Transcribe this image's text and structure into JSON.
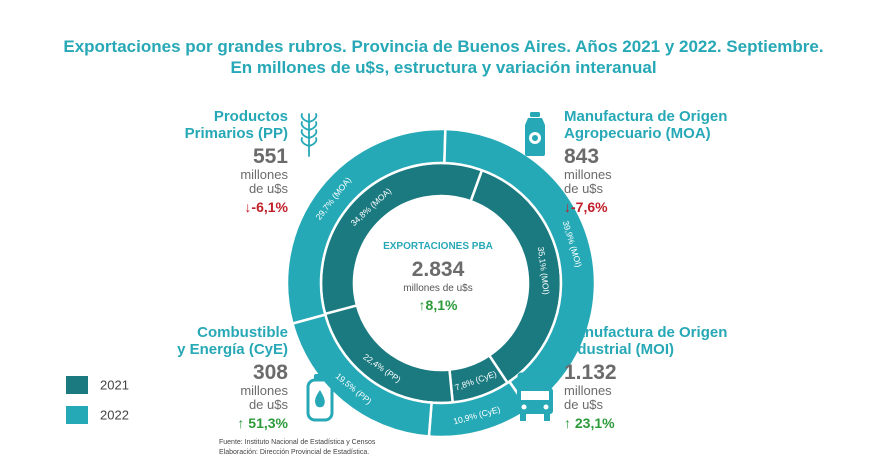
{
  "title_line1": "Exportaciones por grandes rubros. Provincia de Buenos Aires. Años 2021 y 2022. Septiembre.",
  "title_line2": "En millones de u$s, estructura y variación interanual",
  "colors": {
    "y2021": "#1a7a80",
    "y2022": "#26a9b6",
    "accent": "#27a8b6",
    "neg": "#c0202a",
    "pos": "#2d9a3a"
  },
  "blocks": {
    "pp": {
      "line1": "Productos",
      "line2": "Primarios (PP)",
      "value": "551",
      "unit1": "millones",
      "unit2": "de u$s",
      "change": "-6,1%",
      "icon": "wheat-icon"
    },
    "moa": {
      "line1": "Manufactura de Origen",
      "line2": "Agropecuario (MOA)",
      "value": "843",
      "unit1": "millones",
      "unit2": "de u$s",
      "change": "-7,6%",
      "icon": "milk-can-icon"
    },
    "cye": {
      "line1": "Combustible",
      "line2": "y Energía (CyE)",
      "value": "308",
      "unit1": "millones",
      "unit2": "de u$s",
      "change": "51,3%",
      "icon": "gas-cylinder-icon"
    },
    "moi": {
      "line1": "Manufactura de Origen",
      "line2": "Industrial (MOI)",
      "value": "1.132",
      "unit1": "millones",
      "unit2": "de u$s",
      "change": "23,1%",
      "icon": "truck-icon"
    }
  },
  "center": {
    "label": "EXPORTACIONES PBA",
    "value": "2.834",
    "unit": "millones de u$s",
    "change": "8,1%"
  },
  "legend": [
    {
      "label": "2021",
      "color": "#1a7a80"
    },
    {
      "label": "2022",
      "color": "#26a9b6"
    }
  ],
  "source_line1": "Fuente: Instituto Nacional de Estadística y Censos",
  "source_line2": "Elaboración: Dirección Provincial de Estadística.",
  "chart_data": {
    "type": "pie",
    "title": "Exportaciones por grandes rubros. Provincia de Buenos Aires. Años 2021 y 2022. Septiembre.",
    "subtitle": "En millones de u$s, estructura y variación interanual",
    "categories": [
      "MOA",
      "MOI",
      "CyE",
      "PP"
    ],
    "series": [
      {
        "name": "2021",
        "values": [
          34.8,
          35.1,
          7.8,
          22.4
        ],
        "labels": [
          "34,8% (MOA)",
          "35,1% (MOI)",
          "7,8% (CyE)",
          "22,4% (PP)"
        ]
      },
      {
        "name": "2022",
        "values": [
          29.7,
          39.9,
          10.9,
          19.5
        ],
        "labels": [
          "29,7% (MOA)",
          "39,9% (MOI)",
          "10,9% (CyE)",
          "19,5% (PP)"
        ]
      }
    ],
    "legend_position": "bottom-left",
    "grid": false
  }
}
